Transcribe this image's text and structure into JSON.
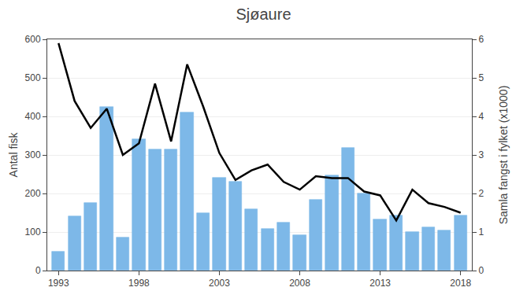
{
  "chart_data": {
    "type": "bar",
    "title": "Sjøaure",
    "ylabel": "Antal fisk",
    "y2label": "Samla fangst i fylket (x1000)",
    "x": [
      1993,
      1994,
      1995,
      1996,
      1997,
      1998,
      1999,
      2000,
      2001,
      2002,
      2003,
      2004,
      2005,
      2006,
      2007,
      2008,
      2009,
      2010,
      2011,
      2012,
      2013,
      2014,
      2015,
      2016,
      2017,
      2018
    ],
    "series": [
      {
        "type": "bar",
        "color": "#7db8e8",
        "values": [
          50,
          140,
          175,
          425,
          85,
          340,
          315,
          315,
          410,
          150,
          240,
          230,
          160,
          108,
          125,
          92,
          183,
          246,
          319,
          200,
          132,
          143,
          100,
          113,
          105,
          142
        ]
      },
      {
        "type": "line",
        "axis": "y2",
        "color": "#000000",
        "values": [
          5.9,
          4.4,
          3.7,
          4.2,
          3.0,
          3.3,
          4.85,
          3.35,
          5.35,
          4.25,
          3.05,
          2.35,
          2.6,
          2.75,
          2.3,
          2.1,
          2.45,
          2.4,
          2.4,
          2.05,
          1.95,
          1.3,
          2.1,
          1.75,
          1.65,
          1.5
        ]
      }
    ],
    "xlim": [
      1992.3,
      2018.7
    ],
    "xticks": [
      1993,
      1998,
      2003,
      2008,
      2013,
      2018
    ],
    "ylim": [
      0,
      600
    ],
    "yticks": [
      0,
      100,
      200,
      300,
      400,
      500,
      600
    ],
    "y2lim": [
      0,
      6
    ],
    "y2ticks": [
      0,
      1,
      2,
      3,
      4,
      5,
      6
    ],
    "grid": true
  }
}
